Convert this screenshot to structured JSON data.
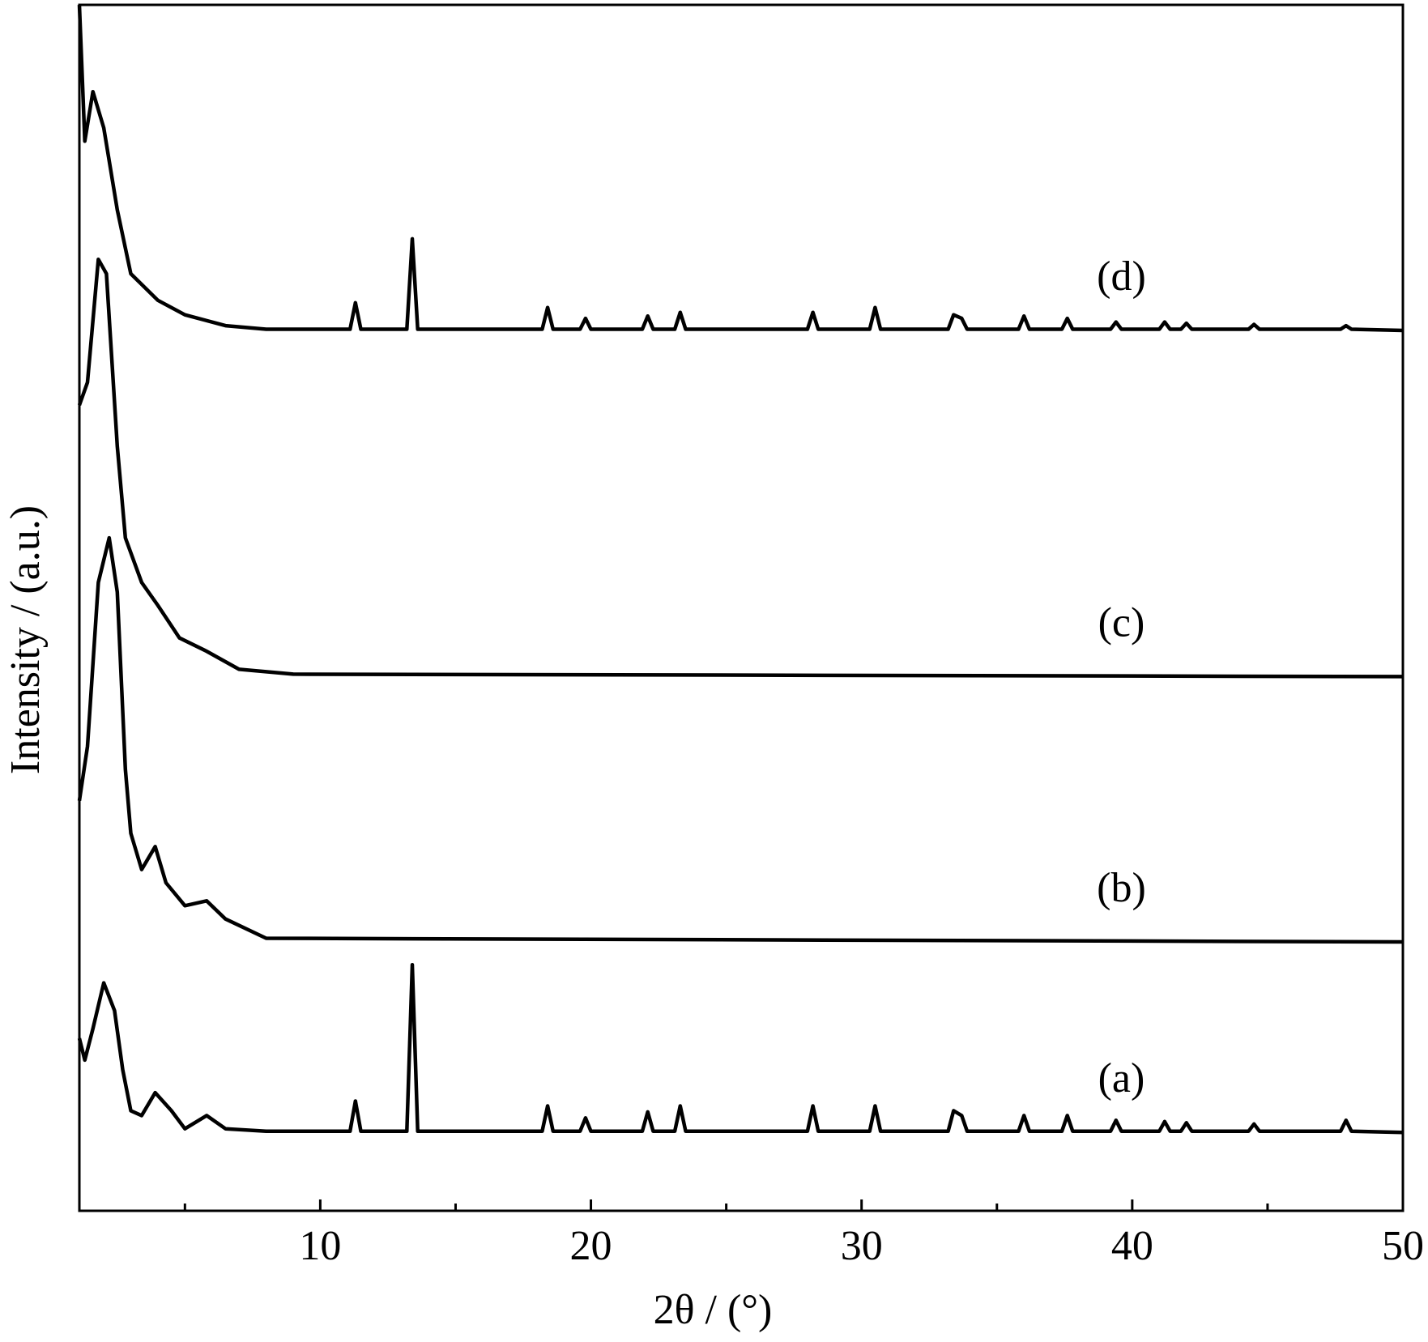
{
  "chart_data": {
    "type": "line",
    "x_label": "2θ / (°)",
    "y_label": "Intensity / (a.u.)",
    "xlim": [
      1.1,
      50
    ],
    "xticks": [
      10,
      20,
      30,
      40,
      50
    ],
    "xminorticks": [
      5,
      15,
      25,
      35,
      45
    ],
    "ylim": [
      0,
      100
    ],
    "grid": false,
    "series": [
      {
        "name": "(a)",
        "color": "#000000",
        "x": [
          1.1,
          1.3,
          1.6,
          2.0,
          2.4,
          2.7,
          3.0,
          3.4,
          3.9,
          4.5,
          5.0,
          5.8,
          6.5,
          8.0,
          11.1,
          11.3,
          11.5,
          13.2,
          13.4,
          13.6,
          18.2,
          18.4,
          18.6,
          19.6,
          19.8,
          20.0,
          21.9,
          22.1,
          22.3,
          23.1,
          23.3,
          23.5,
          28.0,
          28.2,
          28.4,
          30.3,
          30.5,
          30.7,
          33.2,
          33.4,
          33.7,
          33.9,
          35.8,
          36.0,
          36.2,
          37.4,
          37.6,
          37.8,
          39.2,
          39.4,
          39.6,
          41.0,
          41.2,
          41.4,
          41.8,
          42.0,
          42.2,
          44.3,
          44.5,
          44.7,
          47.7,
          47.9,
          48.1,
          50.0
        ],
        "values": [
          14.3,
          12.5,
          15.1,
          18.9,
          16.6,
          11.7,
          8.3,
          7.9,
          9.8,
          8.3,
          6.8,
          7.9,
          6.8,
          6.6,
          6.6,
          9.1,
          6.6,
          6.6,
          20.4,
          6.6,
          6.6,
          8.7,
          6.6,
          6.6,
          7.7,
          6.6,
          6.6,
          8.2,
          6.6,
          6.6,
          8.7,
          6.6,
          6.6,
          8.7,
          6.6,
          6.6,
          8.7,
          6.6,
          6.6,
          8.3,
          7.9,
          6.6,
          6.6,
          7.9,
          6.6,
          6.6,
          7.9,
          6.6,
          6.6,
          7.5,
          6.6,
          6.6,
          7.4,
          6.6,
          6.6,
          7.3,
          6.6,
          6.6,
          7.2,
          6.6,
          6.6,
          7.5,
          6.6,
          6.5
        ]
      },
      {
        "name": "(b)",
        "color": "#000000",
        "x": [
          1.1,
          1.4,
          1.8,
          2.2,
          2.5,
          2.8,
          3.0,
          3.4,
          3.9,
          4.3,
          5.0,
          5.8,
          6.5,
          8.0,
          50.0
        ],
        "values": [
          34.0,
          38.5,
          52.1,
          55.8,
          51.3,
          36.6,
          31.3,
          28.3,
          30.2,
          27.2,
          25.3,
          25.7,
          24.2,
          22.6,
          22.3
        ]
      },
      {
        "name": "(c)",
        "color": "#000000",
        "x": [
          1.1,
          1.4,
          1.8,
          2.1,
          2.5,
          2.8,
          3.4,
          4.0,
          4.8,
          5.8,
          7.0,
          9.0,
          50.0
        ],
        "values": [
          66.8,
          68.7,
          78.9,
          77.7,
          63.4,
          55.8,
          52.1,
          50.2,
          47.5,
          46.4,
          44.9,
          44.5,
          44.3
        ]
      },
      {
        "name": "(d)",
        "color": "#000000",
        "x": [
          1.1,
          1.3,
          1.6,
          2.0,
          2.5,
          3.0,
          4.0,
          5.0,
          6.5,
          8.0,
          11.1,
          11.3,
          11.5,
          13.2,
          13.4,
          13.6,
          18.2,
          18.4,
          18.6,
          19.6,
          19.8,
          20.0,
          21.9,
          22.1,
          22.3,
          23.1,
          23.3,
          23.5,
          28.0,
          28.2,
          28.4,
          30.3,
          30.5,
          30.7,
          33.2,
          33.4,
          33.7,
          33.9,
          35.8,
          36.0,
          36.2,
          37.4,
          37.6,
          37.8,
          39.2,
          39.4,
          39.6,
          41.0,
          41.2,
          41.4,
          41.8,
          42.0,
          42.2,
          44.3,
          44.5,
          44.7,
          47.7,
          47.9,
          48.1,
          50.0
        ],
        "values": [
          100,
          88.7,
          92.8,
          89.8,
          83.0,
          77.7,
          75.5,
          74.3,
          73.4,
          73.1,
          73.1,
          75.3,
          73.1,
          73.1,
          80.6,
          73.1,
          73.1,
          74.9,
          73.1,
          73.1,
          74.0,
          73.1,
          73.1,
          74.2,
          73.1,
          73.1,
          74.5,
          73.1,
          73.1,
          74.5,
          73.1,
          73.1,
          74.9,
          73.1,
          73.1,
          74.3,
          74.0,
          73.1,
          73.1,
          74.2,
          73.1,
          73.1,
          74.0,
          73.1,
          73.1,
          73.7,
          73.1,
          73.1,
          73.7,
          73.1,
          73.1,
          73.6,
          73.1,
          73.1,
          73.5,
          73.1,
          73.1,
          73.4,
          73.1,
          73.0
        ]
      }
    ]
  }
}
